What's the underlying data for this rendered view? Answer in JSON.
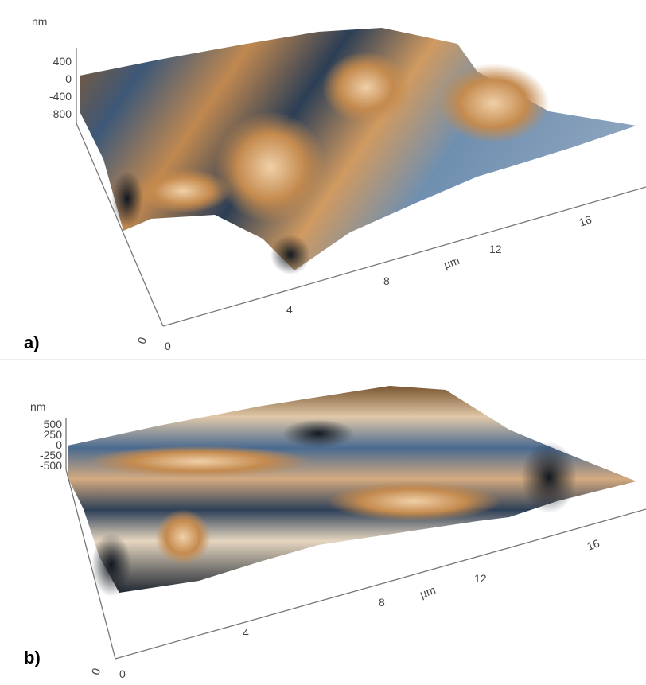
{
  "panels": [
    {
      "label": "a)",
      "z_unit": "nm",
      "z_ticks": [
        "400",
        "0",
        "-400",
        "-800"
      ],
      "y_origin": "0",
      "x_ticks": [
        "0",
        "4",
        "8",
        "12",
        "16"
      ],
      "x_unit": "µm"
    },
    {
      "label": "b)",
      "z_unit": "nm",
      "z_ticks": [
        "500",
        "250",
        "0",
        "-250",
        "-500"
      ],
      "y_origin": "0",
      "x_ticks": [
        "0",
        "4",
        "8",
        "12",
        "16"
      ],
      "x_unit": "µm"
    }
  ]
}
